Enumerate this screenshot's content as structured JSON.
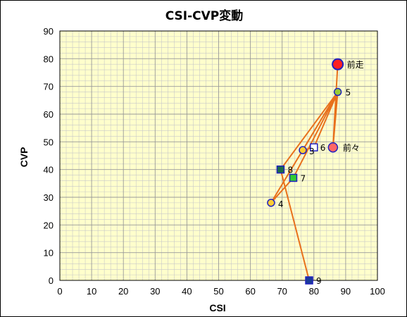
{
  "chart_data": {
    "type": "scatter",
    "title": "CSI-CVP変動",
    "xlabel": "CSI",
    "ylabel": "CVP",
    "xlim": [
      0,
      100
    ],
    "ylim": [
      0,
      90
    ],
    "x_ticks": [
      "0",
      "10",
      "20",
      "30",
      "40",
      "50",
      "60",
      "70",
      "80",
      "90",
      "100"
    ],
    "y_ticks": [
      "0",
      "10",
      "20",
      "30",
      "40",
      "50",
      "60",
      "70",
      "80",
      "90"
    ],
    "grid": true,
    "plot_background": "#ffffcc",
    "line_color": "#e8701c",
    "points": [
      {
        "label": "前走",
        "x": 87.5,
        "y": 78,
        "shape": "circle",
        "fill": "#ff2020",
        "stroke": "#2020c0",
        "size": "large"
      },
      {
        "label": "5",
        "x": 87.5,
        "y": 68,
        "shape": "circle",
        "fill": "#99cc33",
        "stroke": "#2020c0",
        "size": "small"
      },
      {
        "label": "前々",
        "x": 86,
        "y": 48,
        "shape": "circle",
        "fill": "#ff6666",
        "stroke": "#2020c0",
        "size": "medium"
      },
      {
        "label": "6",
        "x": 80,
        "y": 48,
        "shape": "square",
        "fill": "#ffffff",
        "stroke": "#2020c0",
        "size": "small"
      },
      {
        "label": "3",
        "x": 76.5,
        "y": 47,
        "shape": "circle",
        "fill": "#ffcc33",
        "stroke": "#2020c0",
        "size": "small"
      },
      {
        "label": "8",
        "x": 69.5,
        "y": 40,
        "shape": "square",
        "fill": "#1a6b4a",
        "stroke": "#2020c0",
        "size": "small"
      },
      {
        "label": "7",
        "x": 73.5,
        "y": 37,
        "shape": "square",
        "fill": "#33cc33",
        "stroke": "#2020c0",
        "size": "small"
      },
      {
        "label": "4",
        "x": 66.5,
        "y": 28,
        "shape": "circle",
        "fill": "#ffcc33",
        "stroke": "#2020c0",
        "size": "small"
      },
      {
        "label": "9",
        "x": 78.5,
        "y": 0,
        "shape": "square",
        "fill": "#1a3a99",
        "stroke": "#2020c0",
        "size": "small"
      }
    ],
    "path_order": [
      "前走",
      "前々",
      "5",
      "3",
      "6",
      "5",
      "7",
      "4",
      "5",
      "8",
      "9"
    ]
  }
}
